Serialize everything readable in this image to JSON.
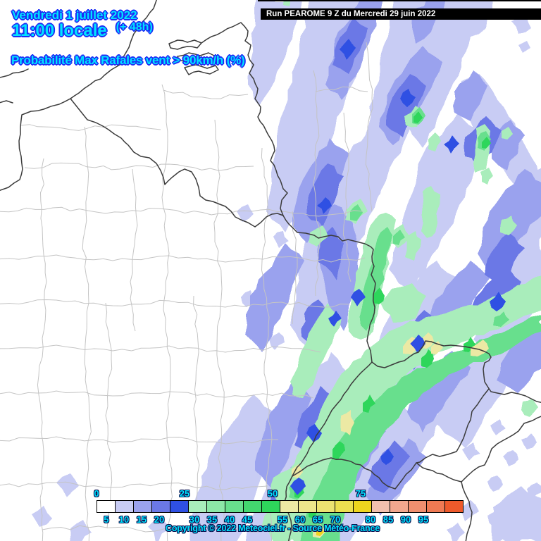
{
  "header": {
    "date_line": "Vendredi 1 juillet 2022",
    "time_line": "11:00 locale",
    "offset_label": "(+ 48h)",
    "subtitle": "Probabilité Max Rafales vent > 90km/h (%)",
    "text_color": "#00e4ff",
    "outline_color": "#1c2cf5"
  },
  "run_box": {
    "label": "Run PEAROME 9 Z du Mercredi 29 juin 2022",
    "bg_color": "#000000",
    "text_color": "#ffffff"
  },
  "legend": {
    "stops": [
      {
        "value": 0,
        "color": "#ffffff"
      },
      {
        "value": 5,
        "color": "#c8ccf4"
      },
      {
        "value": 10,
        "color": "#9aa2ee"
      },
      {
        "value": 15,
        "color": "#6b78e6"
      },
      {
        "value": 20,
        "color": "#2f50e3"
      },
      {
        "value": 25,
        "color": "#a9edbb"
      },
      {
        "value": 30,
        "color": "#8ce7a7"
      },
      {
        "value": 35,
        "color": "#68df8d"
      },
      {
        "value": 40,
        "color": "#43d76f"
      },
      {
        "value": 45,
        "color": "#2ed65b"
      },
      {
        "value": 50,
        "color": "#ece9a4"
      },
      {
        "value": 55,
        "color": "#ece58b"
      },
      {
        "value": 60,
        "color": "#ece271"
      },
      {
        "value": 65,
        "color": "#ecdf50"
      },
      {
        "value": 70,
        "color": "#eed51e"
      },
      {
        "value": 75,
        "color": "#f2c0ad"
      },
      {
        "value": 80,
        "color": "#f2a78e"
      },
      {
        "value": 85,
        "color": "#f08f6f"
      },
      {
        "value": 90,
        "color": "#ef7a53"
      },
      {
        "value": 95,
        "color": "#ee5a2b"
      }
    ],
    "label_color": "#00e4ff",
    "label_outline": "#0a1150"
  },
  "copyright": {
    "text": "Copyright © 2022 Meteociel.fr - Source Météo-France"
  },
  "map": {
    "land_color": "#ffffff",
    "department_border_color": "#c4c4c4",
    "country_border_color": "#3c3c3c",
    "top_strip_color": "#000000",
    "class_colors": {
      "a": "#c8ccf4",
      "b": "#9aa2ee",
      "c": "#6b78e6",
      "d": "#2f50e3",
      "e": "#a9edbb",
      "f": "#68df8d",
      "g": "#2ed65b",
      "h": "#ece9a4",
      "i": "#eed51e"
    }
  }
}
